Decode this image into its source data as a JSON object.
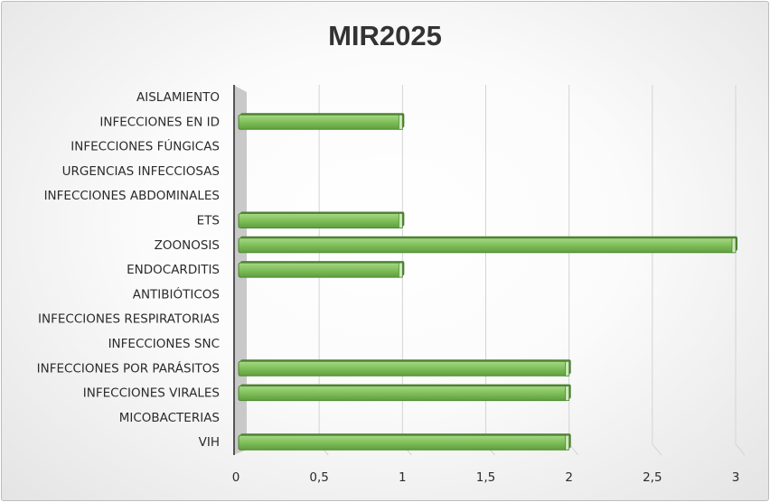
{
  "chart_data": {
    "type": "bar",
    "orientation": "horizontal",
    "title": "MIR2025",
    "categories": [
      "AISLAMIENTO",
      "INFECCIONES EN ID",
      "INFECCIONES FÚNGICAS",
      "URGENCIAS INFECCIOSAS",
      "INFECCIONES ABDOMINALES",
      "ETS",
      "ZOONOSIS",
      "ENDOCARDITIS",
      "ANTIBIÓTICOS",
      "INFECCIONES RESPIRATORIAS",
      "INFECCIONES SNC",
      "INFECCIONES POR PARÁSITOS",
      "INFECCIONES VIRALES",
      "MICOBACTERIAS",
      "VIH"
    ],
    "values": [
      0,
      1,
      0,
      0,
      0,
      1,
      3,
      1,
      0,
      0,
      0,
      2,
      2,
      0,
      2
    ],
    "xlim": [
      0,
      3
    ],
    "x_ticks": [
      "0",
      "0,5",
      "1",
      "1,5",
      "2",
      "2,5",
      "3"
    ],
    "grid": true,
    "bar_color": "#7fbf5a",
    "bar_edge_color": "#4e8a31",
    "wall_color": "#c9c9c9"
  }
}
